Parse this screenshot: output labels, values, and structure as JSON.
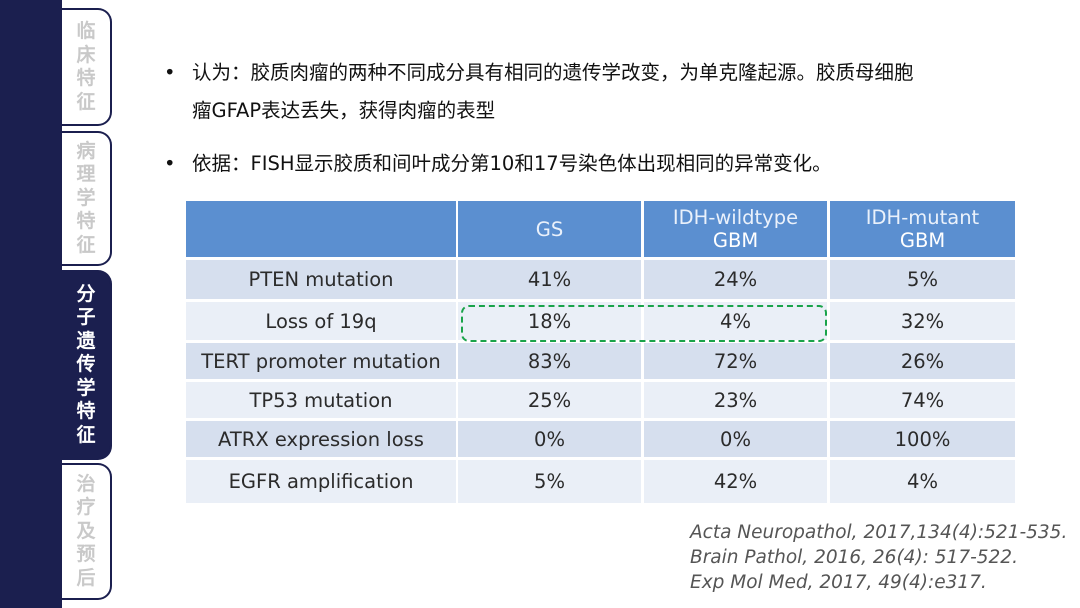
{
  "sidebar": {
    "tabs": [
      {
        "label": "临床特征",
        "chars": [
          "临",
          "床",
          "特",
          "征"
        ],
        "active": false
      },
      {
        "label": "病理学特征",
        "chars": [
          "病",
          "理",
          "学",
          "特",
          "征"
        ],
        "active": false
      },
      {
        "label": "分子遗传学特征",
        "chars": [
          "分",
          "子",
          "遗",
          "传",
          "学",
          "特",
          "征"
        ],
        "active": true
      },
      {
        "label": "治疗及预后",
        "chars": [
          "治",
          "疗",
          "及",
          "预",
          "后"
        ],
        "active": false
      }
    ]
  },
  "bullets": {
    "marker": "•",
    "b1": {
      "line1": "认为：胶质肉瘤的两种不同成分具有相同的遗传学改变，为单克隆起源。胶质母细胞",
      "line2": "瘤GFAP表达丢失，获得肉瘤的表型"
    },
    "b2": {
      "line1": "依据：FISH显示胶质和间叶成分第10和17号染色体出现相同的异常变化。"
    }
  },
  "table": {
    "columns": [
      {
        "line1": "",
        "line2": ""
      },
      {
        "line1": "GS",
        "line2": ""
      },
      {
        "line1": "IDH-wildtype",
        "line2": "GBM"
      },
      {
        "line1": "IDH-mutant",
        "line2": "GBM"
      }
    ],
    "rows": [
      [
        "PTEN mutation",
        "41%",
        "24%",
        "5%"
      ],
      [
        "Loss of 19q",
        "18%",
        "4%",
        "32%"
      ],
      [
        "TERT promoter mutation",
        "83%",
        "72%",
        "26%"
      ],
      [
        "TP53 mutation",
        "25%",
        "23%",
        "74%"
      ],
      [
        "ATRX expression loss",
        "0%",
        "0%",
        "100%"
      ],
      [
        "EGFR amplification",
        "5%",
        "42%",
        "4%"
      ]
    ]
  },
  "references": [
    "Acta Neuropathol, 2017,134(4):521-535.",
    "Brain Pathol, 2016, 26(4): 517-522.",
    "Exp Mol Med, 2017, 49(4):e317."
  ],
  "colors": {
    "sidebar": "#1b1f4f",
    "table_header": "#5b8fd0",
    "row_dark": "#d6dfee",
    "row_light": "#eaeff7",
    "highlight_dashed": "#1aa34a"
  }
}
